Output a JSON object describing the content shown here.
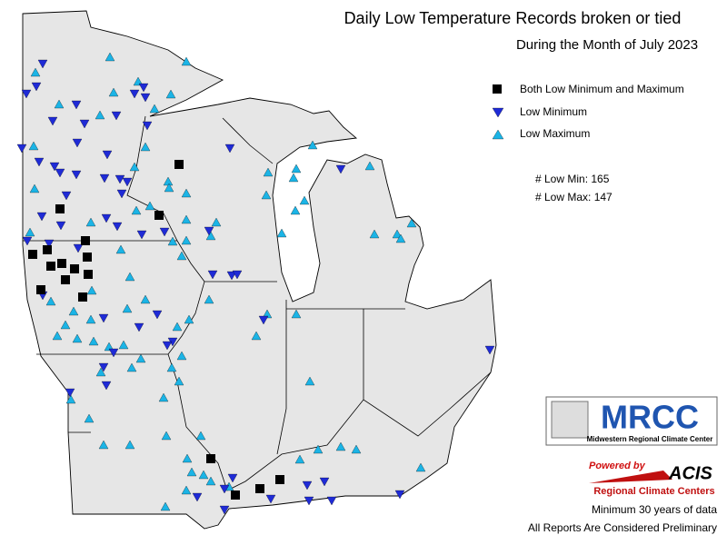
{
  "header": {
    "title": "Daily Low Temperature Records broken or tied",
    "subtitle": "During the Month of July 2023"
  },
  "legend": {
    "items": [
      "Both Low Minimum and Maximum",
      "Low Minimum",
      "Low Maximum"
    ],
    "counts": [
      "# Low Min: 165",
      "# Low Max: 147"
    ]
  },
  "logos": {
    "mrcc": "MRCC",
    "mrcc_name": "Midwestern Regional Climate Center",
    "powered_by": "Powered by",
    "acis": "ACIS",
    "rcc": "Regional Climate Centers"
  },
  "footer": {
    "notes": [
      "Minimum 30 years of data",
      "All Reports Are Considered Preliminary"
    ]
  }
}
